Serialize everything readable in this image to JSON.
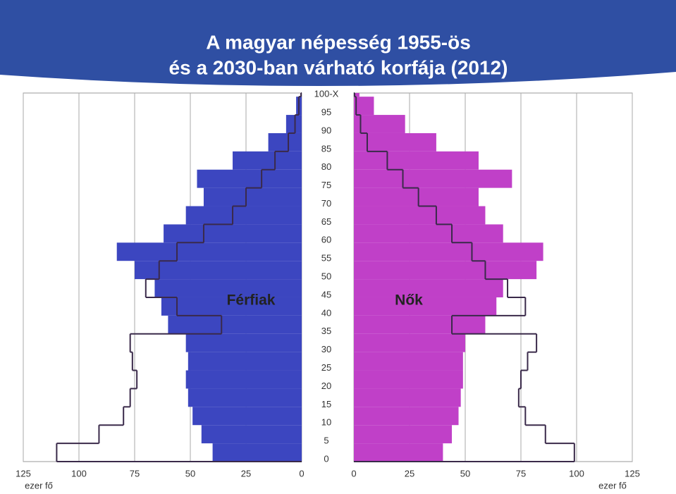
{
  "chart_data": {
    "type": "pyramid",
    "title_lines": [
      "A magyar népesség 1955-ös",
      "és a 2030-ban várható korfája (2012)"
    ],
    "x_unit_label": "ezer fő",
    "ages": [
      0,
      5,
      10,
      15,
      20,
      25,
      30,
      35,
      40,
      45,
      50,
      55,
      60,
      65,
      70,
      75,
      80,
      85,
      90,
      95,
      100
    ],
    "ylim": [
      0,
      101
    ],
    "yticks": [
      0,
      5,
      10,
      15,
      20,
      25,
      30,
      35,
      40,
      45,
      50,
      55,
      60,
      65,
      70,
      75,
      80,
      85,
      90,
      95,
      {
        "value": 100,
        "label": "100-X"
      }
    ],
    "xlim": [
      0,
      125
    ],
    "xticks": [
      0,
      25,
      50,
      75,
      100,
      125
    ],
    "grid": true,
    "sides": [
      {
        "label": "Férfiak",
        "color": "#3c46c0",
        "outline_color": "#3a2a4a",
        "bars": [
          40,
          45,
          49,
          51,
          52,
          51,
          52,
          60,
          63,
          66,
          75,
          83,
          62,
          52,
          44,
          47,
          31,
          15,
          7,
          2.5,
          0.5
        ],
        "outline": [
          110,
          91,
          80,
          77,
          74,
          76,
          77,
          36,
          56,
          70,
          64,
          56,
          44,
          31,
          25,
          18,
          12,
          6,
          3,
          1.3,
          0.3
        ]
      },
      {
        "label": "Nők",
        "color": "#c040c8",
        "outline_color": "#3a2a4a",
        "bars": [
          40,
          44,
          47,
          48,
          49,
          49,
          50,
          59,
          64,
          67,
          82,
          85,
          67,
          59,
          56,
          71,
          56,
          37,
          23,
          9,
          2.5
        ],
        "outline": [
          99,
          86,
          77,
          74,
          75,
          78,
          82,
          44,
          77,
          69,
          59,
          53,
          44,
          37,
          29,
          22,
          15,
          6,
          3,
          1,
          0.3
        ]
      }
    ]
  }
}
